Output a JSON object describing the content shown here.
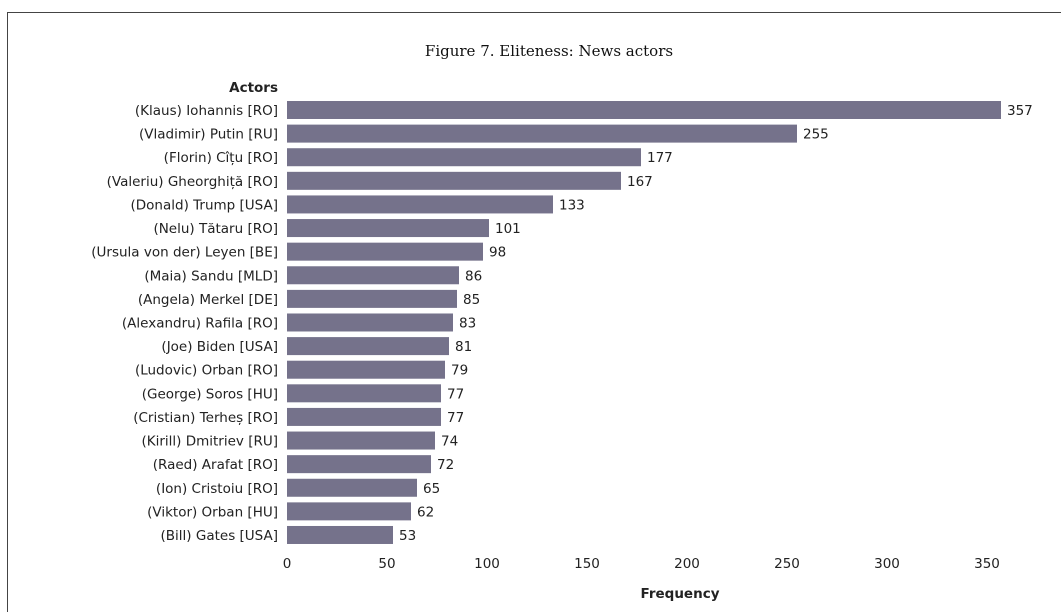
{
  "chart_data": {
    "type": "bar",
    "orientation": "horizontal",
    "title": "Figure 7. Eliteness: News actors",
    "ylabel": "Actors",
    "xlabel": "Frequency",
    "xlim": [
      0,
      357
    ],
    "xticks": [
      0,
      50,
      100,
      150,
      200,
      250,
      300,
      350
    ],
    "grid": false,
    "bar_color": "#75728b",
    "categories": [
      "(Klaus) Iohannis [RO]",
      "(Vladimir) Putin [RU]",
      "(Florin) Cîțu [RO]",
      "(Valeriu) Gheorghiță [RO]",
      "(Donald) Trump [USA]",
      "(Nelu) Tătaru [RO]",
      "(Ursula von der) Leyen [BE]",
      "(Maia) Sandu [MLD]",
      "(Angela) Merkel [DE]",
      "(Alexandru) Rafila [RO]",
      "(Joe) Biden [USA]",
      "(Ludovic) Orban [RO]",
      "(George) Soros [HU]",
      "(Cristian) Terheș [RO]",
      "(Kirill) Dmitriev [RU]",
      "(Raed) Arafat [RO]",
      "(Ion) Cristoiu [RO]",
      "(Viktor) Orban [HU]",
      "(Bill) Gates [USA]"
    ],
    "values": [
      357,
      255,
      177,
      167,
      133,
      101,
      98,
      86,
      85,
      83,
      81,
      79,
      77,
      77,
      74,
      72,
      65,
      62,
      53
    ]
  }
}
